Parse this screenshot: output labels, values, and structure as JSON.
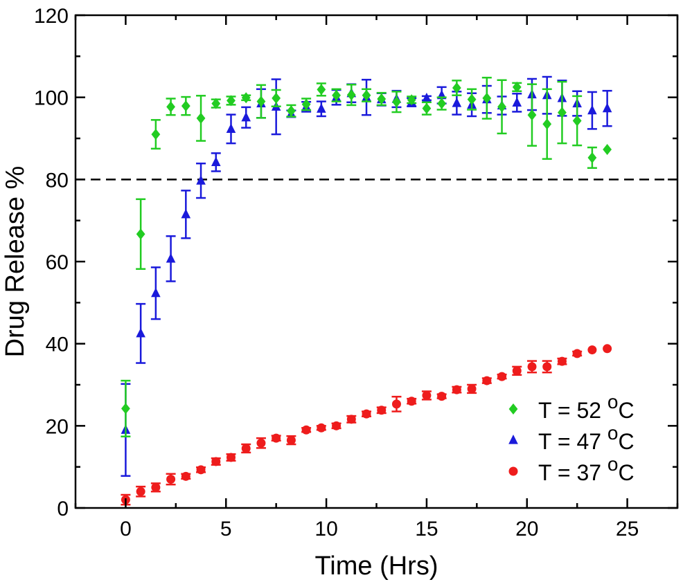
{
  "chart_data": {
    "type": "scatter",
    "xlabel": "Time (Hrs)",
    "ylabel": "Drug Release %",
    "xlim": [
      -2.5,
      27.5
    ],
    "ylim": [
      0,
      120
    ],
    "xticks": [
      0,
      5,
      10,
      15,
      20,
      25
    ],
    "yticks": [
      0,
      20,
      40,
      60,
      80,
      100,
      120
    ],
    "reference_line": {
      "y": 80,
      "style": "dashed"
    },
    "legend_position": "bottom-right",
    "colors": {
      "52C": "#22cc22",
      "47C": "#1a1adb",
      "37C": "#ee1c1c"
    },
    "series": [
      {
        "name": "T = 52 °C",
        "legend": {
          "prefix": "T = 52 ",
          "sup": "o",
          "suffix": "C"
        },
        "key": "52C",
        "marker": "diamond",
        "x": [
          0,
          0.75,
          1.5,
          2.25,
          3,
          3.75,
          4.5,
          5.25,
          6,
          6.75,
          7.5,
          8.25,
          9,
          9.75,
          10.5,
          11.25,
          12,
          12.75,
          13.5,
          14.25,
          15,
          15.75,
          16.5,
          17.25,
          18,
          18.75,
          19.5,
          20.25,
          21,
          21.75,
          22.5,
          23.25,
          24
        ],
        "y": [
          24.2,
          66.7,
          91,
          97.7,
          97.9,
          94.9,
          98.5,
          99.2,
          99.9,
          99,
          99.8,
          96.7,
          98.3,
          101.9,
          100.5,
          100.6,
          100.5,
          99.6,
          98.9,
          99.4,
          97.3,
          98.5,
          102.3,
          99.5,
          99.8,
          97.7,
          102.5,
          95.7,
          93.5,
          96.3,
          94.3,
          85.3,
          87.3
        ],
        "err": [
          6.8,
          8.5,
          3.5,
          2,
          2.2,
          5.5,
          1,
          1,
          0.6,
          4,
          2,
          1.4,
          1.4,
          1.5,
          1.5,
          2.5,
          1.5,
          1.5,
          2.5,
          0.8,
          1.5,
          1.5,
          1.8,
          2.5,
          5,
          6.5,
          1,
          7.5,
          8.5,
          7.5,
          6,
          2.5,
          0
        ]
      },
      {
        "name": "T = 47 °C",
        "legend": {
          "prefix": "T = 47 ",
          "sup": "o",
          "suffix": "C"
        },
        "key": "47C",
        "marker": "triangle",
        "x": [
          0,
          0.75,
          1.5,
          2.25,
          3,
          3.75,
          4.5,
          5.25,
          6,
          6.75,
          7.5,
          8.25,
          9,
          9.75,
          10.5,
          11.25,
          12,
          12.75,
          13.5,
          14.25,
          15,
          15.75,
          16.5,
          17.25,
          18,
          18.75,
          19.5,
          20.25,
          21,
          21.75,
          22.5,
          23.25,
          24
        ],
        "y": [
          19,
          42.5,
          52.3,
          60.7,
          71.5,
          79.7,
          84.2,
          92.3,
          95.1,
          98.5,
          97.7,
          96,
          97.7,
          97.2,
          100,
          101,
          100,
          99.5,
          99.6,
          98.8,
          99.8,
          100.5,
          98.6,
          98.2,
          99.5,
          98,
          98.7,
          100.7,
          100.5,
          99.8,
          98.5,
          96.8,
          97.3
        ],
        "err": [
          11.2,
          7.2,
          6.3,
          5.5,
          5.8,
          4.2,
          2.2,
          3.5,
          2.5,
          3.5,
          6.7,
          0.8,
          1.2,
          1.8,
          1.8,
          2.2,
          4.3,
          1.5,
          2,
          1,
          0.5,
          2,
          2.8,
          2.8,
          3.3,
          2.2,
          2.2,
          3.8,
          4.5,
          4.3,
          3,
          4.5,
          4.3
        ]
      },
      {
        "name": "T = 37 °C",
        "legend": {
          "prefix": "T = 37 ",
          "sup": "o",
          "suffix": "C"
        },
        "key": "37C",
        "marker": "circle",
        "x": [
          0,
          0.75,
          1.5,
          2.25,
          3,
          3.75,
          4.5,
          5.25,
          6,
          6.75,
          7.5,
          8.25,
          9,
          9.75,
          10.5,
          11.25,
          12,
          12.75,
          13.5,
          14.25,
          15,
          15.75,
          16.5,
          17.25,
          18,
          18.75,
          19.5,
          20.25,
          21,
          21.75,
          22.5,
          23.25,
          24
        ],
        "y": [
          2,
          4,
          5,
          7,
          7.7,
          9.3,
          11.3,
          12.3,
          14.5,
          15.8,
          17,
          16.5,
          19,
          19.5,
          20,
          21.6,
          22.9,
          23.8,
          25.3,
          26,
          27.4,
          27.2,
          28.8,
          29,
          31,
          32,
          33.4,
          34.4,
          34.4,
          35.7,
          37.6,
          38.5,
          38.8
        ],
        "err": [
          1.2,
          1.2,
          1,
          1.3,
          0.6,
          0.6,
          0.8,
          0.8,
          1,
          1.2,
          0.6,
          1,
          0.5,
          0.5,
          0.6,
          0.8,
          0.6,
          0.7,
          1.8,
          0.6,
          1,
          0.5,
          0.7,
          1,
          0.6,
          0.5,
          1,
          1.4,
          1.4,
          0.7,
          0.5,
          0,
          0
        ]
      }
    ]
  }
}
